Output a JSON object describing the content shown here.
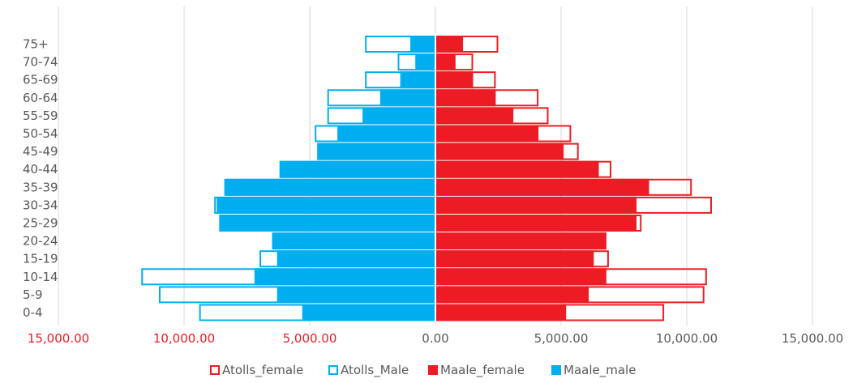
{
  "colors": {
    "maale_female": "#ED1C24",
    "maale_male": "#00AEEF",
    "atolls_female_outline": "#ED1C24",
    "atolls_male_outline": "#00AEEF",
    "grid": "#d9d9d9",
    "axis_text": "#595959",
    "negative_tick_text": "#ED1C24",
    "center_line": "#ffffff"
  },
  "chart_data": {
    "type": "bar",
    "orientation": "horizontal",
    "layout": "population-pyramid",
    "categories": [
      "0-4",
      "5-9",
      "10-14",
      "15-19",
      "20-24",
      "25-29",
      "30-34",
      "35-39",
      "40-44",
      "45-49",
      "50-54",
      "55-59",
      "60-64",
      "65-69",
      "70-74",
      "75+"
    ],
    "series": [
      {
        "name": "Atolls_female",
        "side": "right",
        "style": "outline",
        "values": [
          9100,
          10700,
          10800,
          6900,
          6800,
          8200,
          11000,
          10200,
          7000,
          5700,
          5400,
          4500,
          4100,
          2400,
          1500,
          2500
        ]
      },
      {
        "name": "Atolls_Male",
        "side": "left",
        "style": "outline",
        "values": [
          9400,
          11000,
          11700,
          7000,
          6500,
          8600,
          8800,
          8300,
          6200,
          4700,
          4800,
          4300,
          4300,
          2800,
          1500,
          2800
        ]
      },
      {
        "name": "Maale_female",
        "side": "right",
        "style": "filled",
        "values": [
          5200,
          6100,
          6800,
          6300,
          6800,
          8000,
          8000,
          8500,
          6500,
          5100,
          4100,
          3100,
          2400,
          1500,
          800,
          1100
        ]
      },
      {
        "name": "Maale_male",
        "side": "left",
        "style": "filled",
        "values": [
          5300,
          6300,
          7200,
          6300,
          6500,
          8600,
          8700,
          8400,
          6200,
          4700,
          3900,
          2900,
          2200,
          1400,
          800,
          1000
        ]
      }
    ],
    "xlim": [
      -15000,
      15000
    ],
    "x_ticks": [
      {
        "value": -15000,
        "label": "15,000.00"
      },
      {
        "value": -10000,
        "label": "10,000.00"
      },
      {
        "value": -5000,
        "label": "5,000.00"
      },
      {
        "value": 0,
        "label": "0.00"
      },
      {
        "value": 5000,
        "label": "5,000.00"
      },
      {
        "value": 10000,
        "label": "10,000.00"
      },
      {
        "value": 15000,
        "label": "15,000.00"
      }
    ],
    "legend_position": "bottom",
    "grid": true,
    "title": "",
    "xlabel": "",
    "ylabel": ""
  }
}
